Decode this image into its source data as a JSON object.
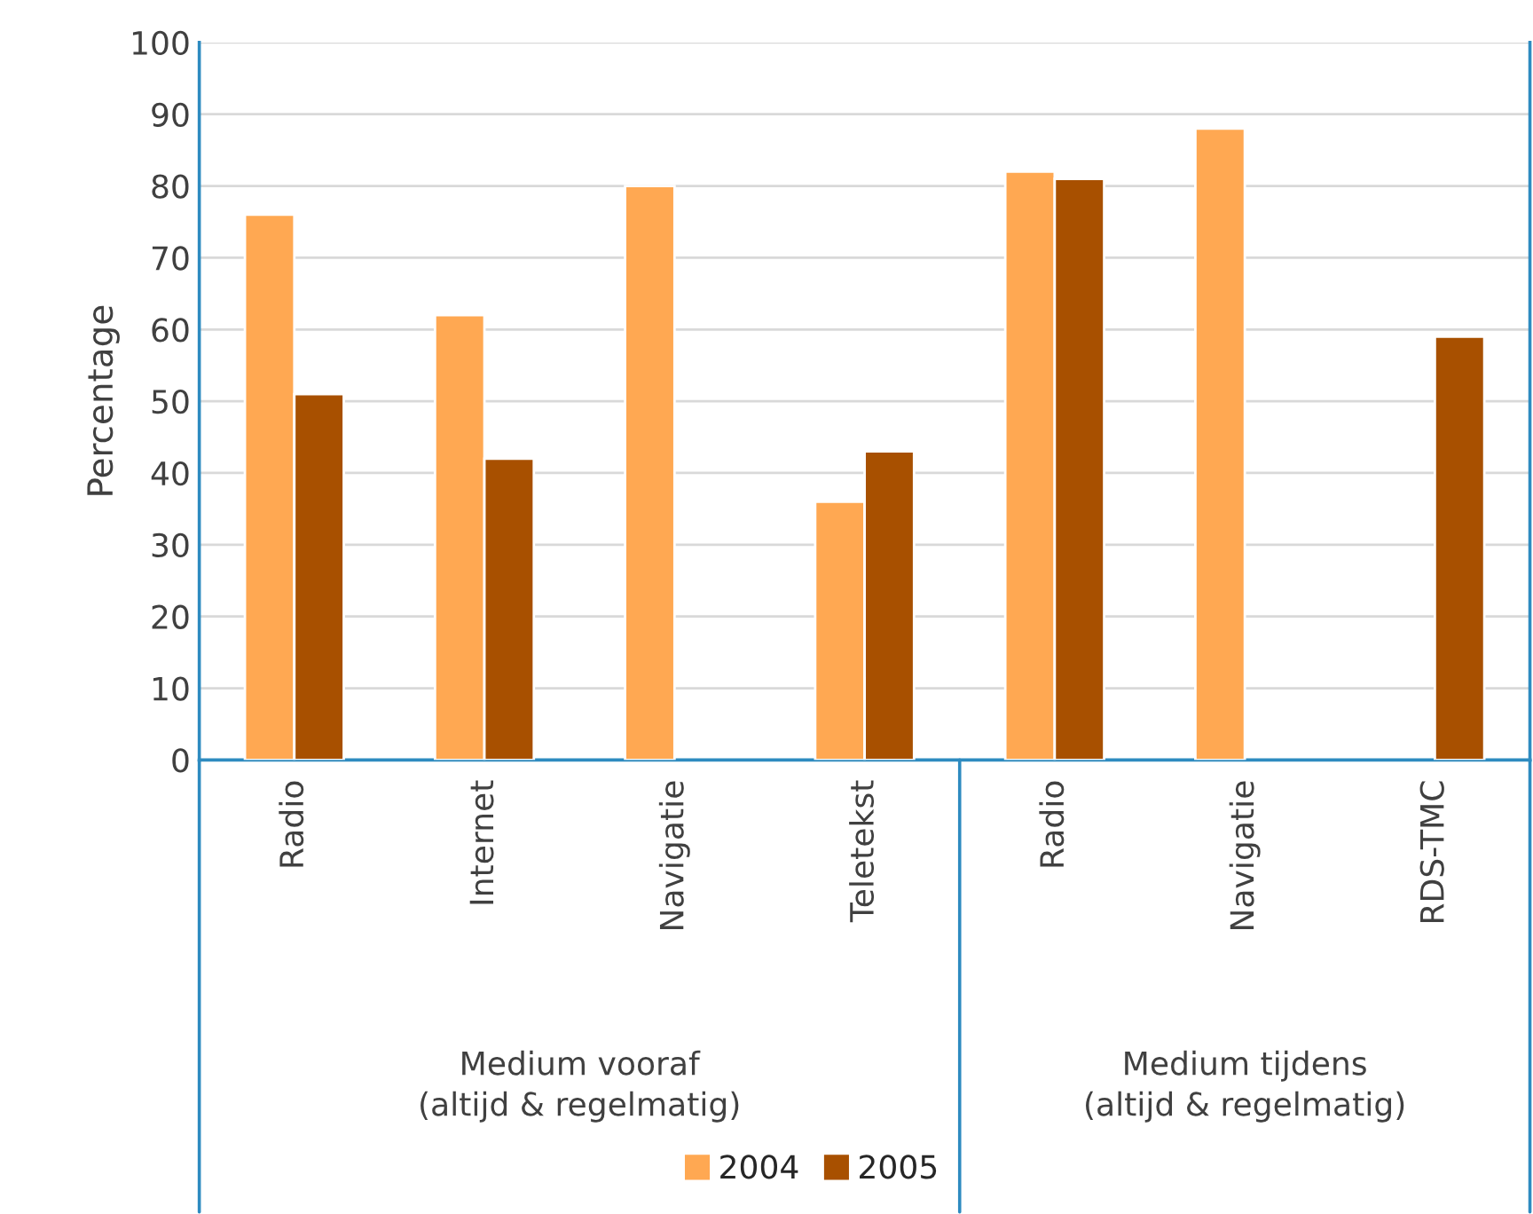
{
  "chart_data": {
    "type": "bar",
    "ylabel": "Percentage",
    "categories": [
      "Radio",
      "Internet",
      "Navigatie",
      "Teletekst",
      "Radio",
      "Navigatie",
      "RDS-TMC"
    ],
    "series": [
      {
        "name": "2004",
        "color": "#ffa852",
        "values": [
          76,
          62,
          80,
          36,
          82,
          88,
          null
        ]
      },
      {
        "name": "2005",
        "color": "#a85000",
        "values": [
          51,
          42,
          null,
          43,
          81,
          null,
          59
        ]
      }
    ],
    "ylim": [
      0,
      100
    ],
    "yticks": [
      0,
      10,
      20,
      30,
      40,
      50,
      60,
      70,
      80,
      90,
      100
    ],
    "grid": "y",
    "legend": "bottom",
    "annotations": [
      "Medium vooraf\n(altijd & regelmatig)",
      "Medium tijdens\n(altijd & regelmatig)"
    ]
  }
}
